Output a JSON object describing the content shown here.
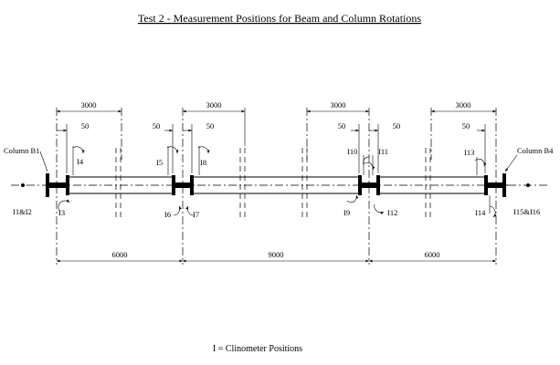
{
  "title": "Test 2 - Measurement Positions for Beam and Column Rotations",
  "footer": "I = Clinometer Positions",
  "columns": {
    "left": "Column B1",
    "right": "Column B4"
  },
  "dims_top": [
    "3000",
    "3000",
    "3000",
    "3000"
  ],
  "dims_small": [
    "50",
    "50",
    "50",
    "50",
    "50",
    "50"
  ],
  "dims_bottom": [
    "6000",
    "9000",
    "6000"
  ],
  "instruments": {
    "I1_I2": "I1&I2",
    "I3": "I3",
    "I4": "I4",
    "I5": "I5",
    "I6": "I6",
    "I7": "I7",
    "I8": "I8",
    "I9": "I9",
    "I10": "I10",
    "I11": "I11",
    "I12": "I12",
    "I13": "I13",
    "I14": "I14",
    "I15_I16": "I15&I16"
  }
}
